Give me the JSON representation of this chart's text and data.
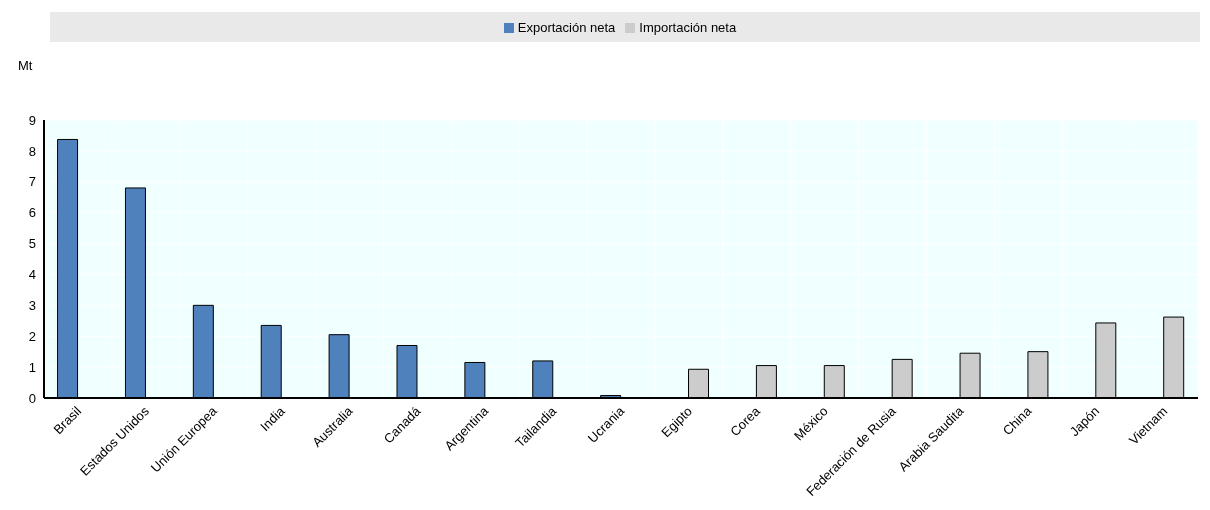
{
  "chart_data": {
    "type": "bar",
    "ylabel": "Mt",
    "categories": [
      "Brasil",
      "Estados Unidos",
      "Unión Europea",
      "India",
      "Australia",
      "Canadá",
      "Argentina",
      "Tailandia",
      "Ucrania",
      "Egipto",
      "Corea",
      "México",
      "Federación de Rusia",
      "Arabia Saudita",
      "China",
      "Japón",
      "Vietnam"
    ],
    "series": [
      {
        "name": "Exportación neta",
        "color": "#4f81bd",
        "values": [
          8.37,
          6.8,
          3.0,
          2.35,
          2.05,
          1.7,
          1.15,
          1.2,
          0.08,
          null,
          null,
          null,
          null,
          null,
          null,
          null,
          null
        ]
      },
      {
        "name": "Importación neta",
        "color": "#cccccc",
        "values": [
          null,
          null,
          null,
          null,
          null,
          null,
          null,
          null,
          null,
          0.93,
          1.05,
          1.05,
          1.25,
          1.45,
          1.5,
          2.43,
          2.62
        ]
      }
    ],
    "ylim": [
      0,
      9
    ],
    "yticks": [
      0,
      1,
      2,
      3,
      4,
      5,
      6,
      7,
      8,
      9
    ],
    "grid": true,
    "legend": "top"
  }
}
